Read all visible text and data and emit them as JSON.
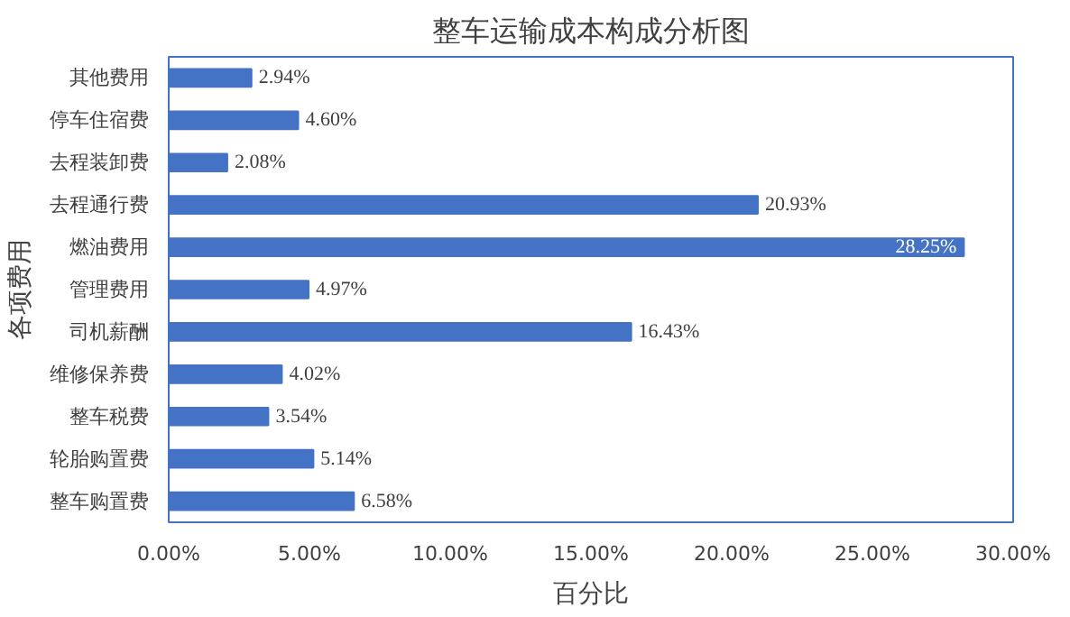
{
  "chart_data": {
    "type": "bar",
    "orientation": "horizontal",
    "title": "整车运输成本构成分析图",
    "xlabel": "百分比",
    "ylabel": "各项费用",
    "categories": [
      "其他费用",
      "停车住宿费",
      "去程装卸费",
      "去程通行费",
      "燃油费用",
      "管理费用",
      "司机薪酬",
      "维修保养费",
      "整车税费",
      "轮胎购置费",
      "整车购置费"
    ],
    "values": [
      2.94,
      4.6,
      2.08,
      20.93,
      28.25,
      4.97,
      16.43,
      4.02,
      3.54,
      5.14,
      6.58
    ],
    "value_labels": [
      "2.94%",
      "4.60%",
      "2.08%",
      "20.93%",
      "28.25%",
      "4.97%",
      "16.43%",
      "4.02%",
      "3.54%",
      "5.14%",
      "6.58%"
    ],
    "color": "#4472c4",
    "xlim": [
      0,
      30
    ],
    "xticks": [
      {
        "value": 0,
        "label": "0.00%"
      },
      {
        "value": 5,
        "label": "5.00%"
      },
      {
        "value": 10,
        "label": "10.00%"
      },
      {
        "value": 15,
        "label": "15.00%"
      },
      {
        "value": 20,
        "label": "20.00%"
      },
      {
        "value": 25,
        "label": "25.00%"
      },
      {
        "value": 30,
        "label": "30.00%"
      }
    ],
    "grid": false
  }
}
